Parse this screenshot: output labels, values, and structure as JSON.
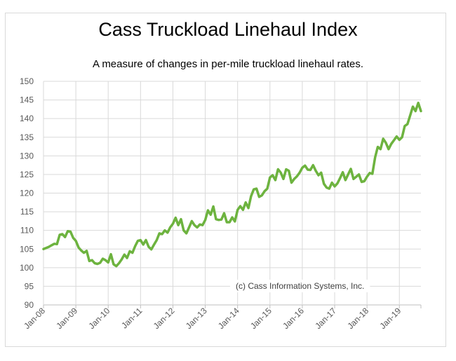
{
  "chart_data": {
    "type": "line",
    "title": "Cass Truckload Linehaul Index",
    "subtitle": "A measure of changes in per-mile truckload linehaul rates.",
    "annotation": "(c) Cass Information Systems, Inc.",
    "xlabel": "",
    "ylabel": "",
    "ylim": [
      90,
      150
    ],
    "yticks": [
      90,
      95,
      100,
      105,
      110,
      115,
      120,
      125,
      130,
      135,
      140,
      145,
      150
    ],
    "xticks": [
      "Jan-08",
      "Jan-09",
      "Jan-10",
      "Jan-11",
      "Jan-12",
      "Jan-13",
      "Jan-14",
      "Jan-15",
      "Jan-16",
      "Jan-17",
      "Jan-18",
      "Jan-19"
    ],
    "grid": true,
    "line_color": "#6db33f",
    "series": [
      {
        "values": [
          105.0,
          105.3,
          105.6,
          106.0,
          106.4,
          106.3,
          108.8,
          109.0,
          108.2,
          109.8,
          109.7,
          108.0,
          107.2,
          105.4,
          104.6,
          104.0,
          104.5,
          101.8,
          102.0,
          101.2,
          101.0,
          101.3,
          102.4,
          102.0,
          101.4,
          103.6,
          100.9,
          100.4,
          101.2,
          102.2,
          103.5,
          102.6,
          104.4,
          104.0,
          105.8,
          107.2,
          107.4,
          106.2,
          107.4,
          105.6,
          104.9,
          106.2,
          107.4,
          109.2,
          109.0,
          110.0,
          109.4,
          110.8,
          111.8,
          113.4,
          111.4,
          113.0,
          110.0,
          109.2,
          110.8,
          112.5,
          111.4,
          110.8,
          111.6,
          111.4,
          112.8,
          115.4,
          114.2,
          116.4,
          113.0,
          112.8,
          112.9,
          114.6,
          112.2,
          112.2,
          113.5,
          112.4,
          115.5,
          116.5,
          115.5,
          117.5,
          116.0,
          119.2,
          121.0,
          121.2,
          119.0,
          119.4,
          120.5,
          121.2,
          124.2,
          124.8,
          123.5,
          126.4,
          125.5,
          123.8,
          126.4,
          126.0,
          122.8,
          123.8,
          124.5,
          125.5,
          126.8,
          127.4,
          126.3,
          126.2,
          127.5,
          126.0,
          124.8,
          125.5,
          122.5,
          121.5,
          121.2,
          122.8,
          121.8,
          122.6,
          124.0,
          125.6,
          123.5,
          125.0,
          126.5,
          123.8,
          124.4,
          125.0,
          123.0,
          123.2,
          124.4,
          125.4,
          125.2,
          129.6,
          132.4,
          131.8,
          134.6,
          133.5,
          131.8,
          133.2,
          134.2,
          135.2,
          134.3,
          135.0,
          138.0,
          138.5,
          140.8,
          143.2,
          142.0,
          144.2,
          142.0
        ]
      }
    ]
  }
}
